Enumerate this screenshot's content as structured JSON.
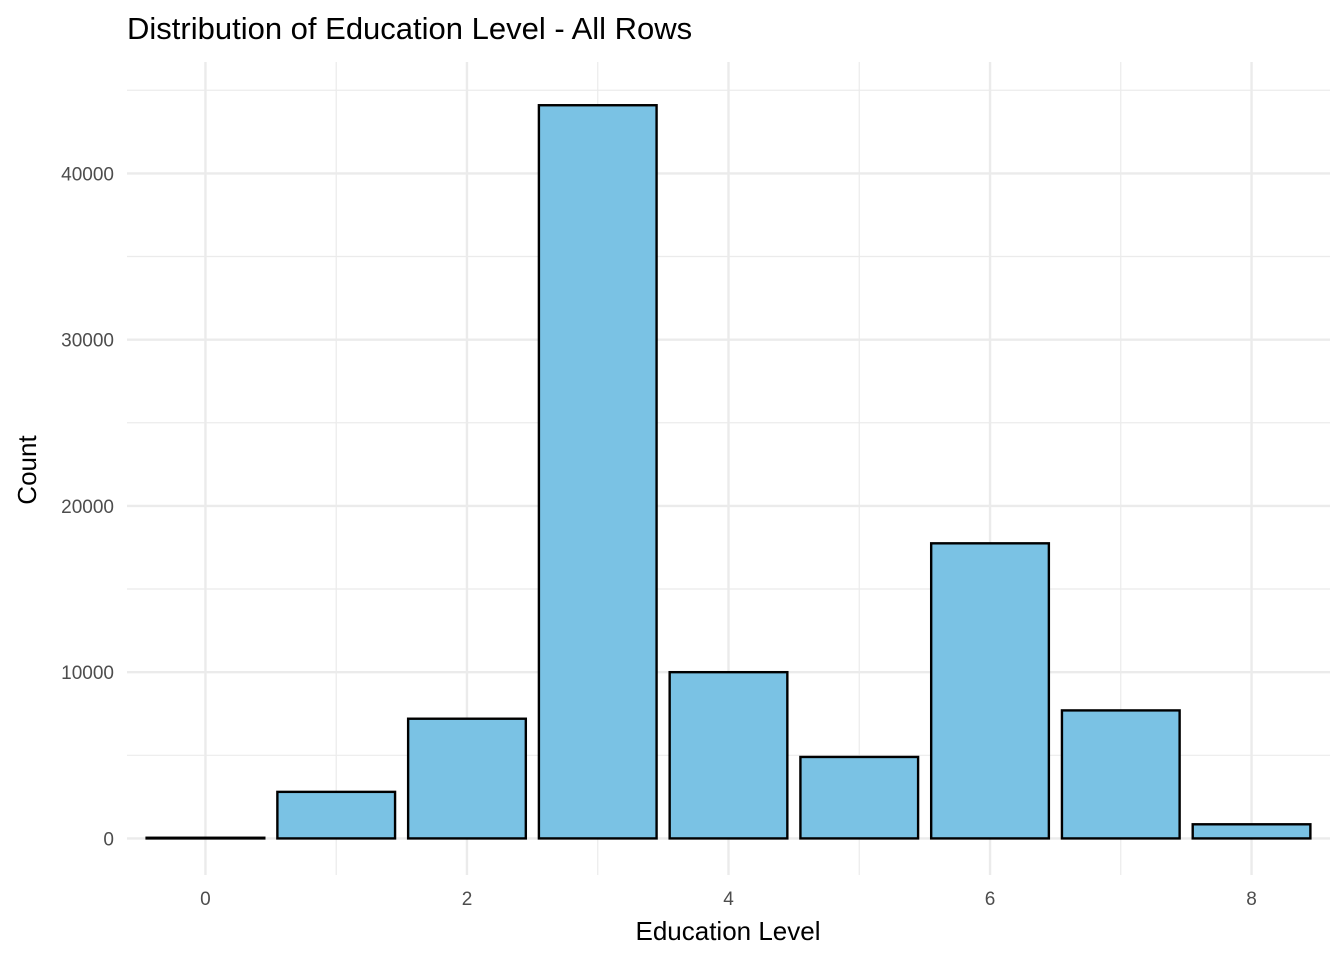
{
  "chart_data": {
    "type": "bar",
    "title": "Distribution of Education Level - All Rows",
    "xlabel": "Education Level",
    "ylabel": "Count",
    "x": [
      0,
      1,
      2,
      3,
      4,
      5,
      6,
      7,
      8
    ],
    "values": [
      40,
      2800,
      7200,
      44100,
      10000,
      4900,
      17750,
      7700,
      850
    ],
    "xlim": [
      -0.6,
      8.6
    ],
    "ylim": [
      -2200,
      46700
    ],
    "x_ticks": [
      0,
      2,
      4,
      6,
      8
    ],
    "x_tick_labels": [
      "0",
      "2",
      "4",
      "6",
      "8"
    ],
    "y_ticks": [
      0,
      10000,
      20000,
      30000,
      40000
    ],
    "y_tick_labels": [
      "0",
      "10000",
      "20000",
      "30000",
      "40000"
    ],
    "grid": true,
    "legend": "none",
    "colors": {
      "bar_fill": "#7AC2E4",
      "bar_outline": "#000000",
      "grid": "#EBEBEB",
      "text": "#000000",
      "tick_text": "#4D4D4D"
    }
  }
}
